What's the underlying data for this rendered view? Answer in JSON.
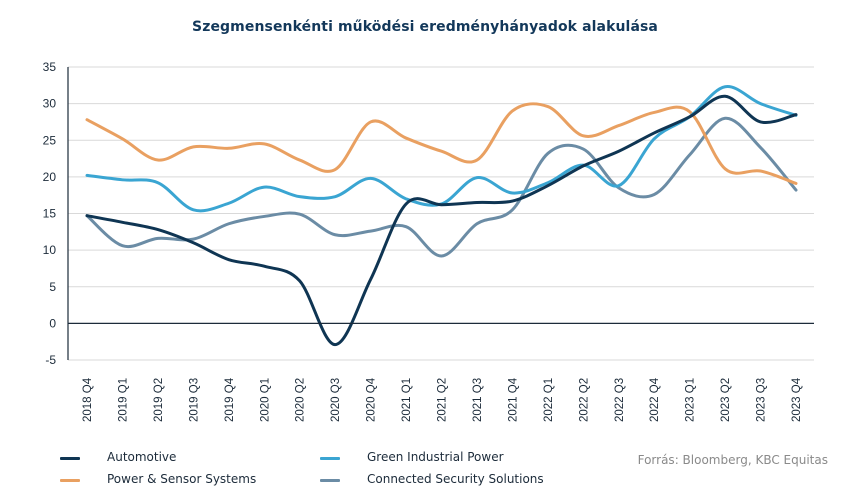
{
  "chart_data": {
    "type": "line",
    "title": "Szegmensenkénti működési eredményhányadok alakulása",
    "xlabel": "",
    "ylabel": "",
    "ylim": [
      -5,
      35
    ],
    "yticks": [
      -5,
      0,
      5,
      10,
      15,
      20,
      25,
      30,
      35
    ],
    "grid": true,
    "legend_position": "bottom-left",
    "categories": [
      "2018 Q4",
      "2019 Q1",
      "2019 Q2",
      "2019 Q3",
      "2019 Q4",
      "2020 Q1",
      "2020 Q2",
      "2020 Q3",
      "2020 Q4",
      "2021 Q1",
      "2021 Q2",
      "2021 Q3",
      "2021 Q4",
      "2022 Q1",
      "2022 Q2",
      "2022 Q3",
      "2022 Q4",
      "2023 Q1",
      "2023 Q2",
      "2023 Q3",
      "2023 Q4"
    ],
    "series": [
      {
        "name": "Automotive",
        "color": "#0f3553",
        "values": [
          14.7,
          13.8,
          12.8,
          11.0,
          8.7,
          7.8,
          5.8,
          -2.9,
          6.0,
          16.3,
          16.2,
          16.5,
          16.7,
          18.8,
          21.5,
          23.5,
          26.0,
          28.2,
          31.0,
          27.5,
          28.5
        ]
      },
      {
        "name": "Green Industrial Power",
        "color": "#3aa5d2",
        "values": [
          20.2,
          19.6,
          19.2,
          15.5,
          16.4,
          18.6,
          17.3,
          17.3,
          19.8,
          17.0,
          16.3,
          19.9,
          17.8,
          19.2,
          21.6,
          18.8,
          25.2,
          28.2,
          32.3,
          30.0,
          28.4
        ]
      },
      {
        "name": "Power & Sensor Systems",
        "color": "#e9a061",
        "values": [
          27.8,
          25.2,
          22.3,
          24.1,
          23.9,
          24.5,
          22.3,
          21.0,
          27.5,
          25.3,
          23.5,
          22.3,
          29.0,
          29.6,
          25.6,
          27.0,
          28.8,
          28.9,
          21.1,
          20.8,
          19.1
        ]
      },
      {
        "name": "Connected Security Solutions",
        "color": "#6b8ca5",
        "values": [
          14.7,
          10.6,
          11.6,
          11.5,
          13.6,
          14.6,
          14.9,
          12.1,
          12.6,
          13.2,
          9.2,
          13.6,
          15.5,
          23.2,
          23.8,
          18.5,
          17.6,
          23.0,
          28.0,
          24.0,
          18.2
        ]
      }
    ]
  },
  "legend": [
    {
      "label": "Automotive",
      "color": "#0f3553"
    },
    {
      "label": "Green Industrial Power",
      "color": "#3aa5d2"
    },
    {
      "label": "Power & Sensor Systems",
      "color": "#e9a061"
    },
    {
      "label": "Connected Security Solutions",
      "color": "#6b8ca5"
    }
  ],
  "source": "Forrás: Bloomberg, KBC Equitas"
}
